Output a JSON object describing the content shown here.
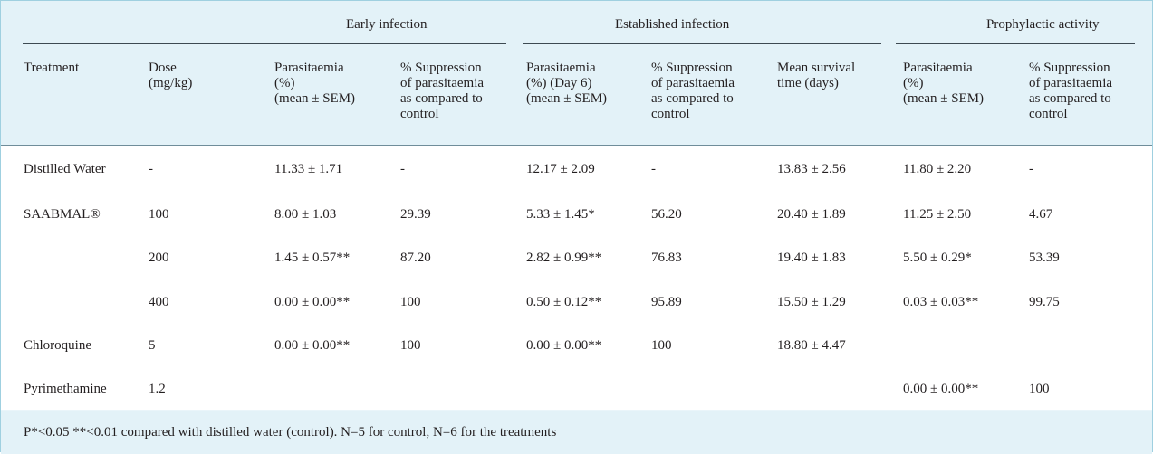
{
  "groups": {
    "early": "Early infection",
    "established": "Established infection",
    "prophylactic": "Prophylactic activity"
  },
  "columns": [
    "Treatment",
    "Dose\n(mg/kg)",
    "Parasitaemia\n(%)\n(mean ± SEM)",
    "% Suppression\nof parasitaemia\nas compared to\ncontrol",
    "Parasitaemia\n(%) (Day 6)\n(mean ± SEM)",
    "% Suppression\nof parasitaemia\nas compared to\ncontrol",
    "Mean survival\ntime (days)",
    "Parasitaemia\n(%)\n(mean ± SEM)",
    "% Suppression\nof parasitaemia\nas compared to\ncontrol"
  ],
  "rows": [
    [
      "Distilled Water",
      "-",
      "11.33 ± 1.71",
      "-",
      "12.17 ± 2.09",
      "-",
      "13.83 ± 2.56",
      "11.80 ± 2.20",
      "-"
    ],
    [
      "SAABMAL®",
      "100",
      "8.00 ± 1.03",
      "29.39",
      "5.33 ± 1.45*",
      "56.20",
      "20.40 ± 1.89",
      "11.25 ± 2.50",
      "4.67"
    ],
    [
      "",
      "200",
      "1.45 ± 0.57**",
      "87.20",
      "2.82 ± 0.99**",
      "76.83",
      "19.40 ± 1.83",
      "5.50 ± 0.29*",
      "53.39"
    ],
    [
      "",
      "400",
      "0.00 ± 0.00**",
      "100",
      "0.50 ± 0.12**",
      "95.89",
      "15.50 ± 1.29",
      "0.03 ± 0.03**",
      "99.75"
    ],
    [
      "Chloroquine",
      "5",
      "0.00 ± 0.00**",
      "100",
      "0.00 ± 0.00**",
      "100",
      "18.80 ± 4.47",
      "",
      ""
    ],
    [
      "Pyrimethamine",
      "1.2",
      "",
      "",
      "",
      "",
      "",
      "0.00 ± 0.00**",
      "100"
    ]
  ],
  "footnote": "P*<0.05 **<0.01 compared with distilled water (control). N=5 for control, N=6 for the treatments"
}
